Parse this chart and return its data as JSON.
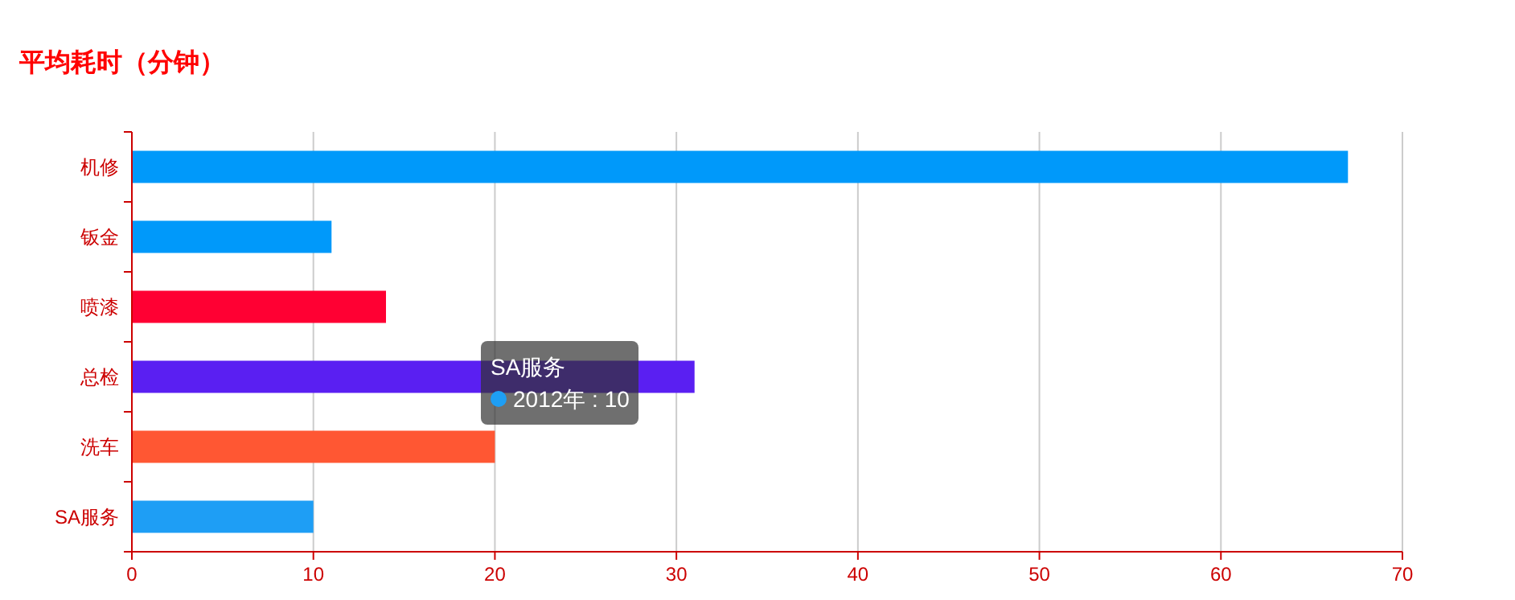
{
  "chart_data": {
    "type": "bar",
    "orientation": "horizontal",
    "title": "平均耗时（分钟）",
    "categories": [
      "机修",
      "钣金",
      "喷漆",
      "总检",
      "洗车",
      "SA服务"
    ],
    "values": [
      67,
      11,
      14,
      31,
      20,
      10
    ],
    "colors": [
      "#0099fa",
      "#0099fa",
      "#ff0033",
      "#5a1ff2",
      "#ff5733",
      "#1e9ef5"
    ],
    "xlim": [
      0,
      70
    ],
    "xticks": [
      0,
      10,
      20,
      30,
      40,
      50,
      60,
      70
    ],
    "grid": "x",
    "annotations": [
      "SA服务",
      "2012年 : 10"
    ]
  }
}
